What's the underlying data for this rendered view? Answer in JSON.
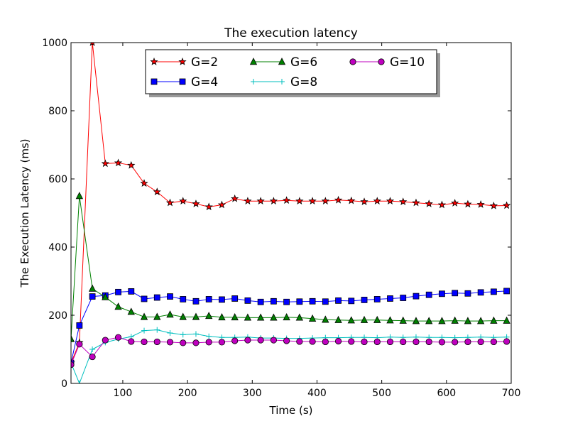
{
  "chart_data": {
    "type": "line",
    "title": "The execution latency",
    "xlabel": "Time (s)",
    "ylabel": "The Execution Latency (ms)",
    "xlim": [
      20,
      700
    ],
    "ylim": [
      0,
      1000
    ],
    "x_ticks": [
      100,
      200,
      300,
      400,
      500,
      600,
      700
    ],
    "y_ticks": [
      0,
      200,
      400,
      600,
      800,
      1000
    ],
    "legend": {
      "location": "upper center",
      "columns": 3,
      "shadow": true
    },
    "x": [
      20,
      33,
      53,
      73,
      93,
      113,
      133,
      153,
      173,
      193,
      213,
      233,
      253,
      273,
      293,
      313,
      333,
      353,
      373,
      393,
      413,
      433,
      453,
      473,
      493,
      513,
      533,
      553,
      573,
      593,
      613,
      633,
      653,
      673,
      693
    ],
    "series": [
      {
        "name": "G=2",
        "color": "#ff0000",
        "marker": "star",
        "values": [
          60,
          120,
          1000,
          645,
          647,
          640,
          587,
          562,
          530,
          535,
          527,
          518,
          524,
          542,
          535,
          535,
          535,
          537,
          535,
          535,
          535,
          538,
          536,
          533,
          535,
          535,
          533,
          530,
          527,
          524,
          529,
          526,
          525,
          521,
          522
        ]
      },
      {
        "name": "G=4",
        "color": "#0000ff",
        "marker": "square",
        "values": [
          60,
          170,
          255,
          258,
          268,
          270,
          248,
          252,
          255,
          247,
          241,
          247,
          246,
          249,
          243,
          239,
          241,
          239,
          240,
          241,
          240,
          243,
          242,
          245,
          247,
          249,
          251,
          256,
          260,
          263,
          265,
          264,
          267,
          269,
          271
        ]
      },
      {
        "name": "G=6",
        "color": "#008000",
        "marker": "triangle",
        "values": [
          130,
          550,
          278,
          253,
          225,
          210,
          195,
          195,
          202,
          195,
          195,
          198,
          194,
          194,
          193,
          193,
          193,
          194,
          193,
          190,
          187,
          186,
          185,
          186,
          186,
          185,
          184,
          183,
          183,
          183,
          184,
          183,
          183,
          184,
          184
        ]
      },
      {
        "name": "G=8",
        "color": "#00bfbf",
        "marker": "plus",
        "values": [
          60,
          0,
          100,
          120,
          130,
          137,
          155,
          157,
          148,
          143,
          145,
          138,
          135,
          135,
          136,
          133,
          133,
          132,
          132,
          133,
          134,
          134,
          135,
          135,
          134,
          136,
          135,
          136,
          135,
          135,
          134,
          135,
          136,
          135,
          136
        ]
      },
      {
        "name": "G=10",
        "color": "#bf00bf",
        "marker": "circle",
        "values": [
          55,
          115,
          78,
          127,
          135,
          123,
          122,
          122,
          121,
          119,
          119,
          121,
          121,
          125,
          127,
          127,
          127,
          125,
          123,
          123,
          122,
          124,
          123,
          122,
          122,
          122,
          122,
          122,
          122,
          121,
          121,
          122,
          122,
          122,
          123
        ]
      }
    ],
    "grid": false
  }
}
